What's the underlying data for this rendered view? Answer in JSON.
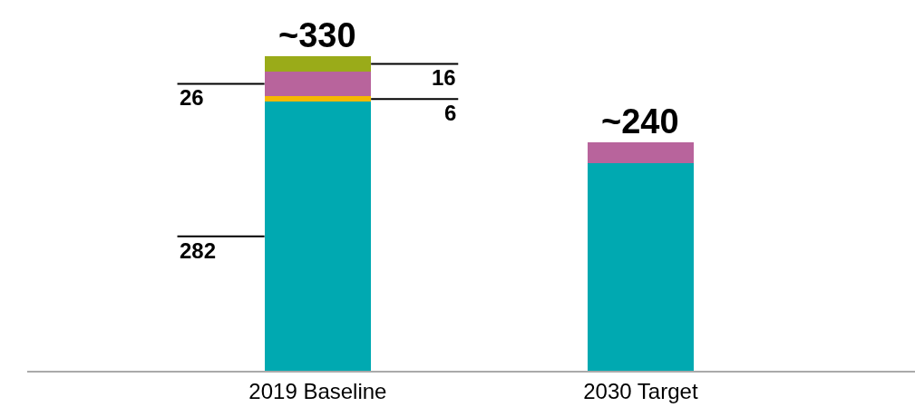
{
  "chart_data": {
    "type": "bar",
    "stacked": true,
    "categories": [
      "2019 Baseline",
      "2030 Target"
    ],
    "series": [
      {
        "color": "#00a9b1",
        "values": [
          282,
          218
        ],
        "value_labels": [
          "282",
          null
        ]
      },
      {
        "color": "#f5b800",
        "values": [
          6,
          0
        ],
        "value_labels": [
          "6",
          null
        ]
      },
      {
        "color": "#b8649c",
        "values": [
          26,
          22
        ],
        "value_labels": [
          "26",
          null
        ]
      },
      {
        "color": "#9aab19",
        "values": [
          16,
          0
        ],
        "value_labels": [
          "16",
          null
        ]
      }
    ],
    "totals": [
      "~330",
      "~240"
    ]
  }
}
